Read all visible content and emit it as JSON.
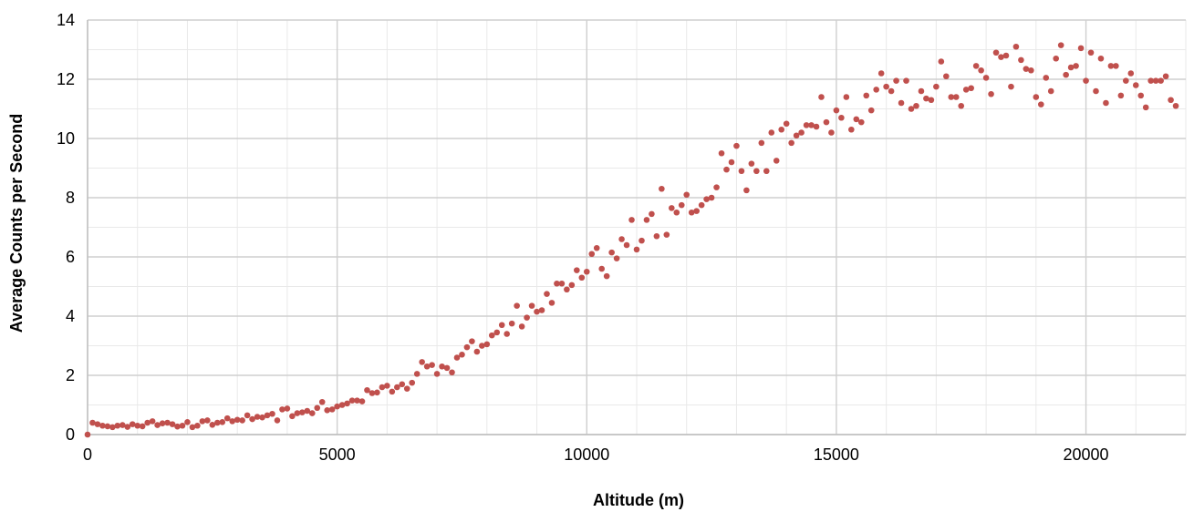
{
  "chart_data": {
    "type": "scatter",
    "title": "",
    "xlabel": "Altitude (m)",
    "ylabel": "Average Counts per Second",
    "xlim": [
      0,
      22000
    ],
    "ylim": [
      0,
      14
    ],
    "x_ticks": [
      0,
      5000,
      10000,
      15000,
      20000
    ],
    "y_ticks": [
      0,
      2,
      4,
      6,
      8,
      10,
      12,
      14
    ],
    "x_minor_step": 1000,
    "y_minor_step": 1,
    "grid": true,
    "legend": false,
    "marker_color": "#C0504D",
    "series": [
      {
        "points": [
          [
            0,
            0.0
          ],
          [
            100,
            0.4
          ],
          [
            200,
            0.35
          ],
          [
            300,
            0.3
          ],
          [
            400,
            0.28
          ],
          [
            500,
            0.25
          ],
          [
            600,
            0.3
          ],
          [
            700,
            0.32
          ],
          [
            800,
            0.26
          ],
          [
            900,
            0.35
          ],
          [
            1000,
            0.3
          ],
          [
            1100,
            0.28
          ],
          [
            1200,
            0.4
          ],
          [
            1300,
            0.45
          ],
          [
            1400,
            0.32
          ],
          [
            1500,
            0.38
          ],
          [
            1600,
            0.4
          ],
          [
            1700,
            0.35
          ],
          [
            1800,
            0.27
          ],
          [
            1900,
            0.3
          ],
          [
            2000,
            0.42
          ],
          [
            2100,
            0.25
          ],
          [
            2200,
            0.3
          ],
          [
            2300,
            0.45
          ],
          [
            2400,
            0.48
          ],
          [
            2500,
            0.33
          ],
          [
            2600,
            0.4
          ],
          [
            2700,
            0.42
          ],
          [
            2800,
            0.55
          ],
          [
            2900,
            0.45
          ],
          [
            3000,
            0.5
          ],
          [
            3100,
            0.48
          ],
          [
            3200,
            0.65
          ],
          [
            3300,
            0.52
          ],
          [
            3400,
            0.6
          ],
          [
            3500,
            0.58
          ],
          [
            3600,
            0.65
          ],
          [
            3700,
            0.7
          ],
          [
            3800,
            0.48
          ],
          [
            3900,
            0.85
          ],
          [
            4000,
            0.88
          ],
          [
            4100,
            0.62
          ],
          [
            4200,
            0.72
          ],
          [
            4300,
            0.75
          ],
          [
            4400,
            0.8
          ],
          [
            4500,
            0.72
          ],
          [
            4600,
            0.9
          ],
          [
            4700,
            1.1
          ],
          [
            4800,
            0.82
          ],
          [
            4900,
            0.85
          ],
          [
            5000,
            0.95
          ],
          [
            5100,
            1.0
          ],
          [
            5200,
            1.05
          ],
          [
            5300,
            1.15
          ],
          [
            5400,
            1.15
          ],
          [
            5500,
            1.12
          ],
          [
            5600,
            1.5
          ],
          [
            5700,
            1.4
          ],
          [
            5800,
            1.42
          ],
          [
            5900,
            1.6
          ],
          [
            6000,
            1.65
          ],
          [
            6100,
            1.45
          ],
          [
            6200,
            1.6
          ],
          [
            6300,
            1.7
          ],
          [
            6400,
            1.55
          ],
          [
            6500,
            1.75
          ],
          [
            6600,
            2.05
          ],
          [
            6700,
            2.45
          ],
          [
            6800,
            2.3
          ],
          [
            6900,
            2.35
          ],
          [
            7000,
            2.05
          ],
          [
            7100,
            2.3
          ],
          [
            7200,
            2.25
          ],
          [
            7300,
            2.1
          ],
          [
            7400,
            2.6
          ],
          [
            7500,
            2.7
          ],
          [
            7600,
            2.95
          ],
          [
            7700,
            3.15
          ],
          [
            7800,
            2.8
          ],
          [
            7900,
            3.0
          ],
          [
            8000,
            3.05
          ],
          [
            8100,
            3.35
          ],
          [
            8200,
            3.45
          ],
          [
            8300,
            3.7
          ],
          [
            8400,
            3.4
          ],
          [
            8500,
            3.75
          ],
          [
            8600,
            4.35
          ],
          [
            8700,
            3.65
          ],
          [
            8800,
            3.95
          ],
          [
            8900,
            4.35
          ],
          [
            9000,
            4.15
          ],
          [
            9100,
            4.2
          ],
          [
            9200,
            4.75
          ],
          [
            9300,
            4.45
          ],
          [
            9400,
            5.1
          ],
          [
            9500,
            5.1
          ],
          [
            9600,
            4.9
          ],
          [
            9700,
            5.05
          ],
          [
            9800,
            5.55
          ],
          [
            9900,
            5.3
          ],
          [
            10000,
            5.5
          ],
          [
            10100,
            6.1
          ],
          [
            10200,
            6.3
          ],
          [
            10300,
            5.6
          ],
          [
            10400,
            5.35
          ],
          [
            10500,
            6.15
          ],
          [
            10600,
            5.95
          ],
          [
            10700,
            6.6
          ],
          [
            10800,
            6.4
          ],
          [
            10900,
            7.25
          ],
          [
            11000,
            6.25
          ],
          [
            11100,
            6.55
          ],
          [
            11200,
            7.25
          ],
          [
            11300,
            7.45
          ],
          [
            11400,
            6.7
          ],
          [
            11500,
            8.3
          ],
          [
            11600,
            6.75
          ],
          [
            11700,
            7.65
          ],
          [
            11800,
            7.5
          ],
          [
            11900,
            7.75
          ],
          [
            12000,
            8.1
          ],
          [
            12100,
            7.5
          ],
          [
            12200,
            7.55
          ],
          [
            12300,
            7.75
          ],
          [
            12400,
            7.95
          ],
          [
            12500,
            8.0
          ],
          [
            12600,
            8.35
          ],
          [
            12700,
            9.5
          ],
          [
            12800,
            8.95
          ],
          [
            12900,
            9.2
          ],
          [
            13000,
            9.75
          ],
          [
            13100,
            8.9
          ],
          [
            13200,
            8.25
          ],
          [
            13300,
            9.15
          ],
          [
            13400,
            8.9
          ],
          [
            13500,
            9.85
          ],
          [
            13600,
            8.9
          ],
          [
            13700,
            10.2
          ],
          [
            13800,
            9.25
          ],
          [
            13900,
            10.3
          ],
          [
            14000,
            10.5
          ],
          [
            14100,
            9.85
          ],
          [
            14200,
            10.1
          ],
          [
            14300,
            10.2
          ],
          [
            14400,
            10.45
          ],
          [
            14500,
            10.45
          ],
          [
            14600,
            10.4
          ],
          [
            14700,
            11.4
          ],
          [
            14800,
            10.55
          ],
          [
            14900,
            10.2
          ],
          [
            15000,
            10.95
          ],
          [
            15100,
            10.7
          ],
          [
            15200,
            11.4
          ],
          [
            15300,
            10.3
          ],
          [
            15400,
            10.65
          ],
          [
            15500,
            10.55
          ],
          [
            15600,
            11.45
          ],
          [
            15700,
            10.95
          ],
          [
            15800,
            11.65
          ],
          [
            15900,
            12.2
          ],
          [
            16000,
            11.75
          ],
          [
            16100,
            11.6
          ],
          [
            16200,
            11.95
          ],
          [
            16300,
            11.2
          ],
          [
            16400,
            11.95
          ],
          [
            16500,
            11.0
          ],
          [
            16600,
            11.1
          ],
          [
            16700,
            11.6
          ],
          [
            16800,
            11.35
          ],
          [
            16900,
            11.3
          ],
          [
            17000,
            11.75
          ],
          [
            17100,
            12.6
          ],
          [
            17200,
            12.1
          ],
          [
            17300,
            11.4
          ],
          [
            17400,
            11.4
          ],
          [
            17500,
            11.1
          ],
          [
            17600,
            11.65
          ],
          [
            17700,
            11.7
          ],
          [
            17800,
            12.45
          ],
          [
            17900,
            12.3
          ],
          [
            18000,
            12.05
          ],
          [
            18100,
            11.5
          ],
          [
            18200,
            12.9
          ],
          [
            18300,
            12.75
          ],
          [
            18400,
            12.8
          ],
          [
            18500,
            11.75
          ],
          [
            18600,
            13.1
          ],
          [
            18700,
            12.65
          ],
          [
            18800,
            12.35
          ],
          [
            18900,
            12.3
          ],
          [
            19000,
            11.4
          ],
          [
            19100,
            11.15
          ],
          [
            19200,
            12.05
          ],
          [
            19300,
            11.6
          ],
          [
            19400,
            12.7
          ],
          [
            19500,
            13.15
          ],
          [
            19600,
            12.15
          ],
          [
            19700,
            12.4
          ],
          [
            19800,
            12.45
          ],
          [
            19900,
            13.05
          ],
          [
            20000,
            11.95
          ],
          [
            20100,
            12.9
          ],
          [
            20200,
            11.6
          ],
          [
            20300,
            12.7
          ],
          [
            20400,
            11.2
          ],
          [
            20500,
            12.45
          ],
          [
            20600,
            12.45
          ],
          [
            20700,
            11.45
          ],
          [
            20800,
            11.95
          ],
          [
            20900,
            12.2
          ],
          [
            21000,
            11.8
          ],
          [
            21100,
            11.45
          ],
          [
            21200,
            11.05
          ],
          [
            21300,
            11.95
          ],
          [
            21400,
            11.95
          ],
          [
            21500,
            11.95
          ],
          [
            21600,
            12.1
          ],
          [
            21700,
            11.3
          ],
          [
            21800,
            11.1
          ]
        ]
      }
    ]
  }
}
